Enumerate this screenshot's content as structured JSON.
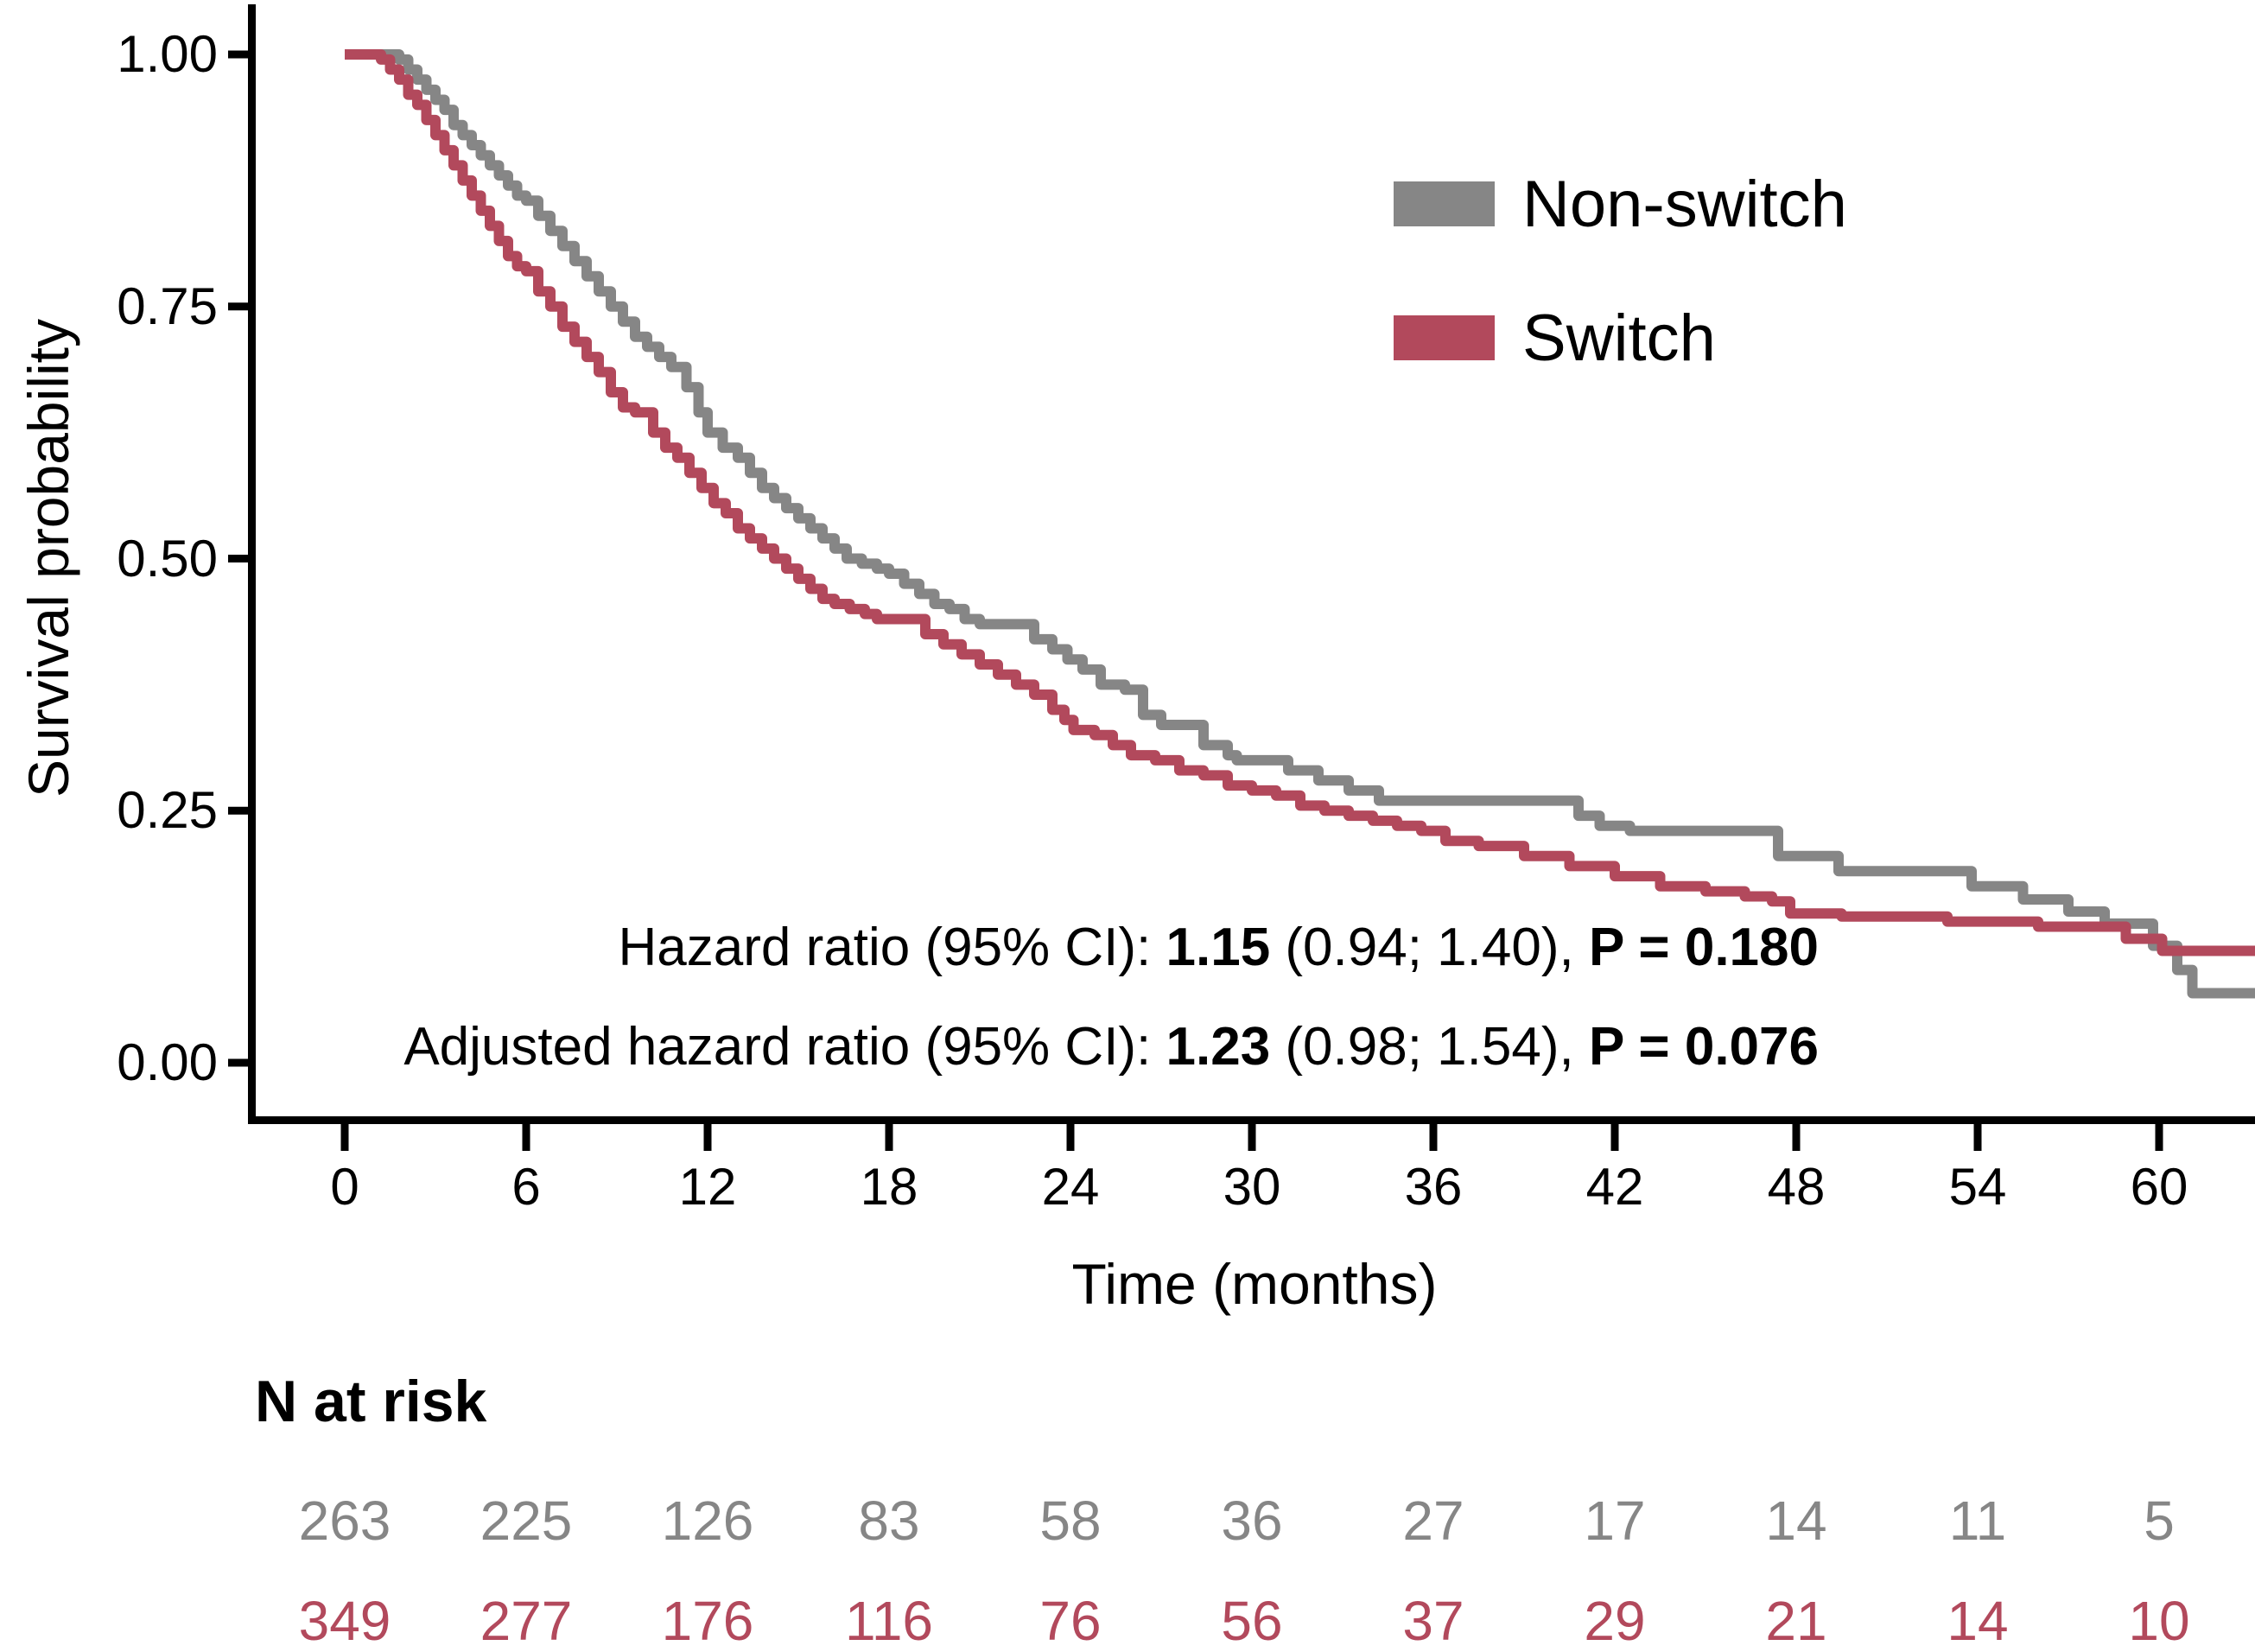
{
  "figure": {
    "background": "#ffffff",
    "axis_color": "#000000"
  },
  "y_axis": {
    "title": "Survival probability",
    "ticks": [
      "1.00",
      "0.75",
      "0.50",
      "0.25",
      "0.00"
    ],
    "tick_values": [
      1.0,
      0.75,
      0.5,
      0.25,
      0.0
    ]
  },
  "x_axis": {
    "title": "Time (months)",
    "ticks": [
      "0",
      "6",
      "12",
      "18",
      "24",
      "30",
      "36",
      "42",
      "48",
      "54",
      "60"
    ],
    "tick_values": [
      0,
      6,
      12,
      18,
      24,
      30,
      36,
      42,
      48,
      54,
      60
    ]
  },
  "legend": {
    "items": [
      {
        "label": "Non-switch",
        "color": "#868686"
      },
      {
        "label": "Switch",
        "color": "#b2495c"
      }
    ]
  },
  "annotations": {
    "line1": {
      "segments": [
        {
          "text": "Hazard ratio (95% CI): ",
          "bold": false
        },
        {
          "text": "1.15",
          "bold": true
        },
        {
          "text": " (0.94; 1.40), ",
          "bold": false
        },
        {
          "text": "P = 0.180",
          "bold": true
        }
      ]
    },
    "line2": {
      "segments": [
        {
          "text": "Adjusted hazard ratio (95% CI): ",
          "bold": false
        },
        {
          "text": "1.23",
          "bold": true
        },
        {
          "text": " (0.98; 1.54), ",
          "bold": false
        },
        {
          "text": "P = 0.076",
          "bold": true
        }
      ]
    }
  },
  "risk_table": {
    "title": "N at risk",
    "times": [
      0,
      6,
      12,
      18,
      24,
      30,
      36,
      42,
      48,
      54,
      60
    ],
    "rows": [
      {
        "group": "Non-switch",
        "color": "#868686",
        "values": [
          "263",
          "225",
          "126",
          "83",
          "58",
          "36",
          "27",
          "17",
          "14",
          "11",
          "5"
        ]
      },
      {
        "group": "Switch",
        "color": "#b2495c",
        "values": [
          "349",
          "277",
          "176",
          "116",
          "76",
          "56",
          "37",
          "29",
          "21",
          "14",
          "10"
        ]
      }
    ]
  },
  "chart_data": {
    "type": "line",
    "subtype": "kaplan-meier-step",
    "title": "",
    "xlabel": "Time (months)",
    "ylabel": "Survival probability",
    "xlim": [
      0,
      63.2
    ],
    "ylim": [
      0,
      1
    ],
    "x_ticks": [
      0,
      6,
      12,
      18,
      24,
      30,
      36,
      42,
      48,
      54,
      60
    ],
    "y_ticks": [
      0,
      0.25,
      0.5,
      0.75,
      1.0
    ],
    "grid": false,
    "legend_position": "inside-upper-right",
    "hazard_ratio_text": "Hazard ratio (95% CI): 1.15 (0.94; 1.40), P = 0.180",
    "adjusted_hazard_ratio_text": "Adjusted hazard ratio (95% CI): 1.23 (0.98; 1.54), P = 0.076",
    "series": [
      {
        "name": "Non-switch",
        "color": "#868686",
        "line_width": 12,
        "t_end": 63.2,
        "n_at_risk": [
          263,
          225,
          126,
          83,
          58,
          36,
          27,
          17,
          14,
          11,
          5
        ],
        "points": [
          [
            0,
            1.0
          ],
          [
            1.8,
            0.995
          ],
          [
            2.1,
            0.985
          ],
          [
            2.4,
            0.975
          ],
          [
            2.7,
            0.965
          ],
          [
            3.0,
            0.955
          ],
          [
            3.3,
            0.945
          ],
          [
            3.6,
            0.93
          ],
          [
            3.9,
            0.92
          ],
          [
            4.2,
            0.91
          ],
          [
            4.5,
            0.9
          ],
          [
            4.8,
            0.89
          ],
          [
            5.1,
            0.88
          ],
          [
            5.4,
            0.87
          ],
          [
            5.7,
            0.86
          ],
          [
            6.0,
            0.855
          ],
          [
            6.4,
            0.84
          ],
          [
            6.8,
            0.825
          ],
          [
            7.2,
            0.81
          ],
          [
            7.6,
            0.795
          ],
          [
            8.0,
            0.78
          ],
          [
            8.4,
            0.765
          ],
          [
            8.8,
            0.75
          ],
          [
            9.2,
            0.735
          ],
          [
            9.6,
            0.72
          ],
          [
            10.0,
            0.71
          ],
          [
            10.4,
            0.7
          ],
          [
            10.8,
            0.69
          ],
          [
            11.3,
            0.67
          ],
          [
            11.7,
            0.645
          ],
          [
            12.0,
            0.625
          ],
          [
            12.5,
            0.61
          ],
          [
            13.0,
            0.6
          ],
          [
            13.4,
            0.585
          ],
          [
            13.8,
            0.57
          ],
          [
            14.2,
            0.56
          ],
          [
            14.6,
            0.55
          ],
          [
            15.0,
            0.54
          ],
          [
            15.4,
            0.53
          ],
          [
            15.8,
            0.52
          ],
          [
            16.2,
            0.51
          ],
          [
            16.6,
            0.5
          ],
          [
            17.1,
            0.495
          ],
          [
            17.6,
            0.49
          ],
          [
            18.0,
            0.485
          ],
          [
            18.5,
            0.475
          ],
          [
            19.0,
            0.465
          ],
          [
            19.5,
            0.455
          ],
          [
            20.0,
            0.45
          ],
          [
            20.5,
            0.44
          ],
          [
            21.0,
            0.435
          ],
          [
            22.8,
            0.42
          ],
          [
            23.4,
            0.41
          ],
          [
            23.9,
            0.4
          ],
          [
            24.4,
            0.39
          ],
          [
            25.0,
            0.375
          ],
          [
            25.8,
            0.37
          ],
          [
            26.4,
            0.345
          ],
          [
            27.0,
            0.335
          ],
          [
            28.4,
            0.315
          ],
          [
            29.2,
            0.305
          ],
          [
            29.5,
            0.3
          ],
          [
            31.2,
            0.29
          ],
          [
            32.2,
            0.28
          ],
          [
            33.2,
            0.27
          ],
          [
            34.2,
            0.26
          ],
          [
            40.8,
            0.245
          ],
          [
            41.5,
            0.235
          ],
          [
            42.5,
            0.23
          ],
          [
            47.4,
            0.205
          ],
          [
            49.4,
            0.19
          ],
          [
            53.8,
            0.175
          ],
          [
            55.5,
            0.162
          ],
          [
            57.0,
            0.15
          ],
          [
            58.2,
            0.138
          ],
          [
            59.8,
            0.116
          ],
          [
            60.6,
            0.092
          ],
          [
            61.1,
            0.069
          ],
          [
            63.2,
            0.069
          ]
        ]
      },
      {
        "name": "Switch",
        "color": "#b2495c",
        "line_width": 12,
        "t_end": 63.2,
        "n_at_risk": [
          349,
          277,
          176,
          116,
          76,
          56,
          37,
          29,
          21,
          14,
          10
        ],
        "points": [
          [
            0,
            1.0
          ],
          [
            1.2,
            0.995
          ],
          [
            1.5,
            0.985
          ],
          [
            1.8,
            0.975
          ],
          [
            2.1,
            0.96
          ],
          [
            2.4,
            0.95
          ],
          [
            2.7,
            0.935
          ],
          [
            3.0,
            0.92
          ],
          [
            3.3,
            0.905
          ],
          [
            3.6,
            0.89
          ],
          [
            3.9,
            0.875
          ],
          [
            4.2,
            0.86
          ],
          [
            4.5,
            0.845
          ],
          [
            4.8,
            0.83
          ],
          [
            5.1,
            0.815
          ],
          [
            5.4,
            0.8
          ],
          [
            5.7,
            0.79
          ],
          [
            6.0,
            0.785
          ],
          [
            6.4,
            0.765
          ],
          [
            6.8,
            0.75
          ],
          [
            7.2,
            0.73
          ],
          [
            7.6,
            0.715
          ],
          [
            8.0,
            0.7
          ],
          [
            8.4,
            0.685
          ],
          [
            8.8,
            0.665
          ],
          [
            9.2,
            0.65
          ],
          [
            9.6,
            0.645
          ],
          [
            10.2,
            0.625
          ],
          [
            10.6,
            0.61
          ],
          [
            11.0,
            0.6
          ],
          [
            11.4,
            0.585
          ],
          [
            11.8,
            0.57
          ],
          [
            12.2,
            0.555
          ],
          [
            12.6,
            0.545
          ],
          [
            13.0,
            0.53
          ],
          [
            13.4,
            0.52
          ],
          [
            13.8,
            0.51
          ],
          [
            14.2,
            0.5
          ],
          [
            14.6,
            0.49
          ],
          [
            15.0,
            0.48
          ],
          [
            15.4,
            0.47
          ],
          [
            15.8,
            0.46
          ],
          [
            16.2,
            0.455
          ],
          [
            16.7,
            0.45
          ],
          [
            17.2,
            0.445
          ],
          [
            17.6,
            0.44
          ],
          [
            19.2,
            0.425
          ],
          [
            19.8,
            0.415
          ],
          [
            20.4,
            0.405
          ],
          [
            21.0,
            0.395
          ],
          [
            21.6,
            0.385
          ],
          [
            22.2,
            0.375
          ],
          [
            22.8,
            0.365
          ],
          [
            23.4,
            0.35
          ],
          [
            23.8,
            0.34
          ],
          [
            24.1,
            0.33
          ],
          [
            24.8,
            0.325
          ],
          [
            25.4,
            0.315
          ],
          [
            26.0,
            0.305
          ],
          [
            26.8,
            0.3
          ],
          [
            27.6,
            0.29
          ],
          [
            28.4,
            0.285
          ],
          [
            29.2,
            0.275
          ],
          [
            30.0,
            0.27
          ],
          [
            30.8,
            0.265
          ],
          [
            31.6,
            0.255
          ],
          [
            32.4,
            0.25
          ],
          [
            33.2,
            0.245
          ],
          [
            34.0,
            0.24
          ],
          [
            34.8,
            0.235
          ],
          [
            35.6,
            0.23
          ],
          [
            36.4,
            0.22
          ],
          [
            37.5,
            0.215
          ],
          [
            39.0,
            0.205
          ],
          [
            40.5,
            0.195
          ],
          [
            42.0,
            0.185
          ],
          [
            43.5,
            0.175
          ],
          [
            45.0,
            0.17
          ],
          [
            46.3,
            0.165
          ],
          [
            47.2,
            0.16
          ],
          [
            47.8,
            0.148
          ],
          [
            49.5,
            0.145
          ],
          [
            53.0,
            0.14
          ],
          [
            56.0,
            0.135
          ],
          [
            58.9,
            0.123
          ],
          [
            60.1,
            0.111
          ],
          [
            63.2,
            0.111
          ]
        ]
      }
    ]
  }
}
